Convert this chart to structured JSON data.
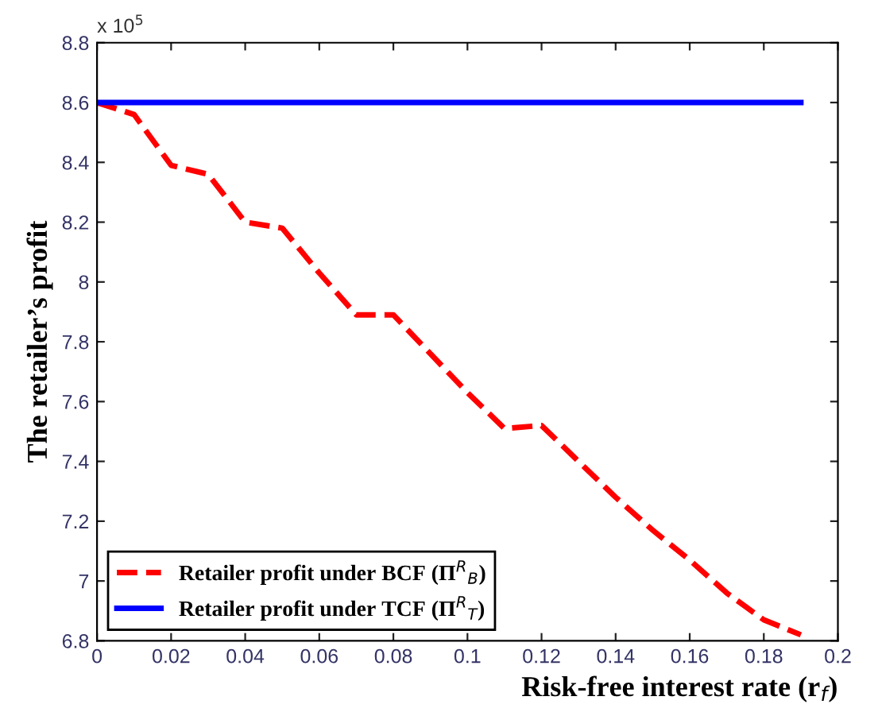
{
  "chart_data": {
    "type": "line",
    "xlabel": "Risk-free interest rate (r$_{f}$)",
    "ylabel": "The retailer’s profit",
    "annotations": [
      "x 10$^{5}$"
    ],
    "series": [
      {
        "name": "Retailer profit under BCF (Π$^{R}$$_{B}$)",
        "color": "#ff0000",
        "line_style": "dashed",
        "x": [
          0,
          0.01,
          0.02,
          0.03,
          0.04,
          0.05,
          0.06,
          0.07,
          0.08,
          0.09,
          0.1,
          0.11,
          0.12,
          0.13,
          0.14,
          0.15,
          0.16,
          0.17,
          0.18,
          0.19
        ],
        "values": [
          8.6,
          8.56,
          8.39,
          8.36,
          8.2,
          8.18,
          8.03,
          7.89,
          7.89,
          7.76,
          7.63,
          7.51,
          7.52,
          7.4,
          7.28,
          7.17,
          7.07,
          6.96,
          6.87,
          6.82
        ]
      },
      {
        "name": "Retailer profit under TCF (Π$^{R}$$_{T}$)",
        "color": "#0000ff",
        "line_style": "solid",
        "x": [
          0,
          0.19
        ],
        "values": [
          8.6,
          8.6
        ]
      }
    ],
    "xlim": [
      0,
      0.2
    ],
    "xticks": [
      0,
      0.02,
      0.04,
      0.06,
      0.08,
      0.1,
      0.12,
      0.14,
      0.16,
      0.18,
      0.2
    ],
    "ylim": [
      6.8,
      8.8
    ],
    "yticks": [
      6.8,
      7,
      7.2,
      7.4,
      7.6,
      7.8,
      8,
      8.2,
      8.4,
      8.6,
      8.8
    ],
    "grid": false,
    "legend": "bottom left",
    "marker": "none"
  }
}
